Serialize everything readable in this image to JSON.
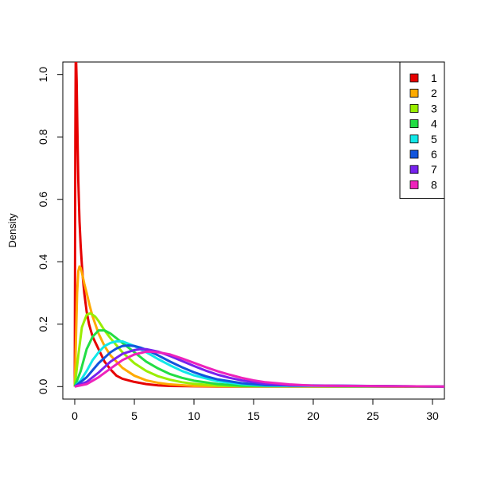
{
  "chart_data": {
    "type": "line",
    "title": "",
    "xlabel": "",
    "ylabel": "Density",
    "xlim": [
      -1,
      31
    ],
    "ylim": [
      -0.04,
      1.04
    ],
    "x_ticks": [
      0,
      5,
      10,
      15,
      20,
      25,
      30
    ],
    "x_tick_labels": [
      "0",
      "5",
      "10",
      "15",
      "20",
      "25",
      "30"
    ],
    "y_ticks": [
      0.0,
      0.2,
      0.4,
      0.6,
      0.8,
      1.0
    ],
    "y_tick_labels": [
      "0.0",
      "0.2",
      "0.4",
      "0.6",
      "0.8",
      "1.0"
    ],
    "grid": false,
    "legend_position": "top-right",
    "series": [
      {
        "name": "1",
        "color": "#e60000",
        "x": [
          0,
          0.02,
          0.05,
          0.08,
          0.12,
          0.16,
          0.2,
          0.25,
          0.3,
          0.4,
          0.5,
          0.6,
          0.7,
          0.8,
          1.0,
          1.2,
          1.5,
          2.0,
          2.5,
          3.0,
          3.5,
          4.0,
          5.0,
          6.0,
          7.0,
          8.0,
          10.0,
          12.0,
          31.0
        ],
        "y": [
          0.0,
          0.3,
          0.8,
          1.04,
          1.04,
          0.98,
          0.88,
          0.76,
          0.66,
          0.53,
          0.45,
          0.39,
          0.34,
          0.3,
          0.24,
          0.2,
          0.16,
          0.12,
          0.08,
          0.055,
          0.035,
          0.025,
          0.015,
          0.008,
          0.004,
          0.002,
          0.001,
          0.0,
          0.0
        ]
      },
      {
        "name": "2",
        "color": "#ffaa00",
        "x": [
          0,
          0.1,
          0.2,
          0.3,
          0.4,
          0.5,
          0.6,
          0.8,
          1.0,
          1.25,
          1.5,
          2.0,
          2.5,
          3.0,
          4.0,
          5.0,
          6.0,
          7.0,
          8.0,
          10.0,
          12.0,
          31.0
        ],
        "y": [
          0.0,
          0.15,
          0.3,
          0.37,
          0.385,
          0.38,
          0.365,
          0.33,
          0.3,
          0.26,
          0.225,
          0.17,
          0.13,
          0.1,
          0.06,
          0.035,
          0.02,
          0.012,
          0.007,
          0.002,
          0.001,
          0.0
        ]
      },
      {
        "name": "3",
        "color": "#99ee00",
        "x": [
          0,
          0.3,
          0.6,
          1.0,
          1.3,
          1.7,
          2.0,
          2.5,
          3.0,
          4.0,
          5.0,
          6.0,
          7.0,
          8.0,
          9.0,
          10.0,
          12.0,
          14.0,
          31.0
        ],
        "y": [
          0.0,
          0.1,
          0.19,
          0.23,
          0.235,
          0.225,
          0.21,
          0.18,
          0.155,
          0.11,
          0.075,
          0.05,
          0.033,
          0.022,
          0.014,
          0.009,
          0.003,
          0.001,
          0.0
        ]
      },
      {
        "name": "4",
        "color": "#22dd44",
        "x": [
          0,
          0.5,
          1.0,
          1.5,
          2.0,
          2.5,
          3.0,
          3.5,
          4.0,
          5.0,
          6.0,
          7.0,
          8.0,
          9.0,
          10.0,
          12.0,
          14.0,
          31.0
        ],
        "y": [
          0.0,
          0.05,
          0.12,
          0.16,
          0.18,
          0.18,
          0.17,
          0.155,
          0.14,
          0.11,
          0.08,
          0.058,
          0.04,
          0.028,
          0.019,
          0.008,
          0.003,
          0.0
        ]
      },
      {
        "name": "5",
        "color": "#11e8e8",
        "x": [
          0,
          0.5,
          1.0,
          1.5,
          2.0,
          2.5,
          3.0,
          3.5,
          4.0,
          5.0,
          6.0,
          7.0,
          8.0,
          9.0,
          10.0,
          12.0,
          14.0,
          16.0,
          31.0
        ],
        "y": [
          0.0,
          0.02,
          0.05,
          0.085,
          0.11,
          0.13,
          0.14,
          0.145,
          0.145,
          0.13,
          0.11,
          0.088,
          0.068,
          0.05,
          0.036,
          0.017,
          0.008,
          0.003,
          0.0
        ]
      },
      {
        "name": "6",
        "color": "#1155dd",
        "x": [
          0,
          1.0,
          2.0,
          3.0,
          3.5,
          4.0,
          4.5,
          5.0,
          5.5,
          6.0,
          7.0,
          8.0,
          9.0,
          10.0,
          11.0,
          12.0,
          14.0,
          16.0,
          31.0
        ],
        "y": [
          0.0,
          0.03,
          0.075,
          0.11,
          0.122,
          0.13,
          0.132,
          0.13,
          0.125,
          0.118,
          0.1,
          0.08,
          0.062,
          0.046,
          0.033,
          0.023,
          0.011,
          0.005,
          0.0
        ]
      },
      {
        "name": "7",
        "color": "#7722ee",
        "x": [
          0,
          1.0,
          2.0,
          3.0,
          4.0,
          5.0,
          5.5,
          6.0,
          7.0,
          8.0,
          9.0,
          10.0,
          11.0,
          12.0,
          13.0,
          14.0,
          16.0,
          18.0,
          31.0
        ],
        "y": [
          0.0,
          0.015,
          0.045,
          0.08,
          0.105,
          0.117,
          0.12,
          0.12,
          0.112,
          0.098,
          0.082,
          0.066,
          0.051,
          0.038,
          0.028,
          0.02,
          0.009,
          0.004,
          0.0
        ]
      },
      {
        "name": "8",
        "color": "#ee22bb",
        "x": [
          0,
          1.0,
          2.0,
          3.0,
          4.0,
          5.0,
          6.0,
          6.5,
          7.0,
          8.0,
          9.0,
          10.0,
          11.0,
          12.0,
          13.0,
          14.0,
          15.0,
          16.0,
          18.0,
          20.0,
          31.0
        ],
        "y": [
          0.0,
          0.008,
          0.03,
          0.058,
          0.085,
          0.103,
          0.112,
          0.112,
          0.11,
          0.103,
          0.09,
          0.076,
          0.062,
          0.049,
          0.038,
          0.028,
          0.02,
          0.014,
          0.007,
          0.003,
          0.0
        ]
      }
    ]
  }
}
